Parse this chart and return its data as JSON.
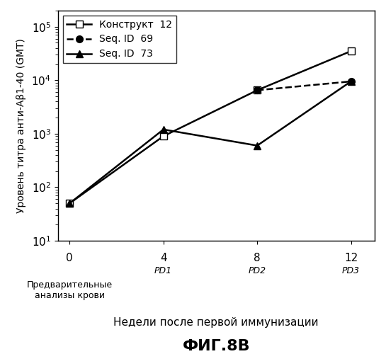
{
  "title": "ФИГ.8В",
  "ylabel": "Уровень титра анти-Аβ1-40 (GMT)",
  "xlabel": "Недели после первой иммунизации",
  "x_values": [
    0,
    4,
    8,
    12
  ],
  "x_tick_labels": [
    "0",
    "4",
    "8",
    "12"
  ],
  "x_tick_sublabels": [
    "Предварительные\nанализы крови",
    "PD1",
    "PD2",
    "PD3"
  ],
  "x_tick_sublabel_styles": [
    "normal",
    "italic",
    "italic",
    "italic"
  ],
  "series": [
    {
      "label": "Конструкт  12",
      "y": [
        50,
        900,
        6500,
        35000
      ],
      "color": "#000000",
      "linestyle": "-",
      "marker": "s",
      "markerfacecolor": "white",
      "markersize": 7,
      "linewidth": 1.8
    },
    {
      "label": "Seq. ID  69",
      "y": [
        null,
        null,
        6500,
        9500
      ],
      "color": "#000000",
      "linestyle": "--",
      "marker": "o",
      "markerfacecolor": "#000000",
      "markersize": 7,
      "linewidth": 1.8
    },
    {
      "label": "Seq. ID  73",
      "y": [
        50,
        1200,
        600,
        9500
      ],
      "color": "#000000",
      "linestyle": "-",
      "marker": "^",
      "markerfacecolor": "#000000",
      "markersize": 7,
      "linewidth": 1.8
    }
  ],
  "ylim": [
    10,
    200000
  ],
  "xlim": [
    -0.5,
    13
  ],
  "background_color": "#ffffff",
  "legend_loc": "upper left",
  "legend_fontsize": 10,
  "title_fontsize": 16,
  "xlabel_fontsize": 11,
  "ylabel_fontsize": 10,
  "tick_fontsize": 11
}
